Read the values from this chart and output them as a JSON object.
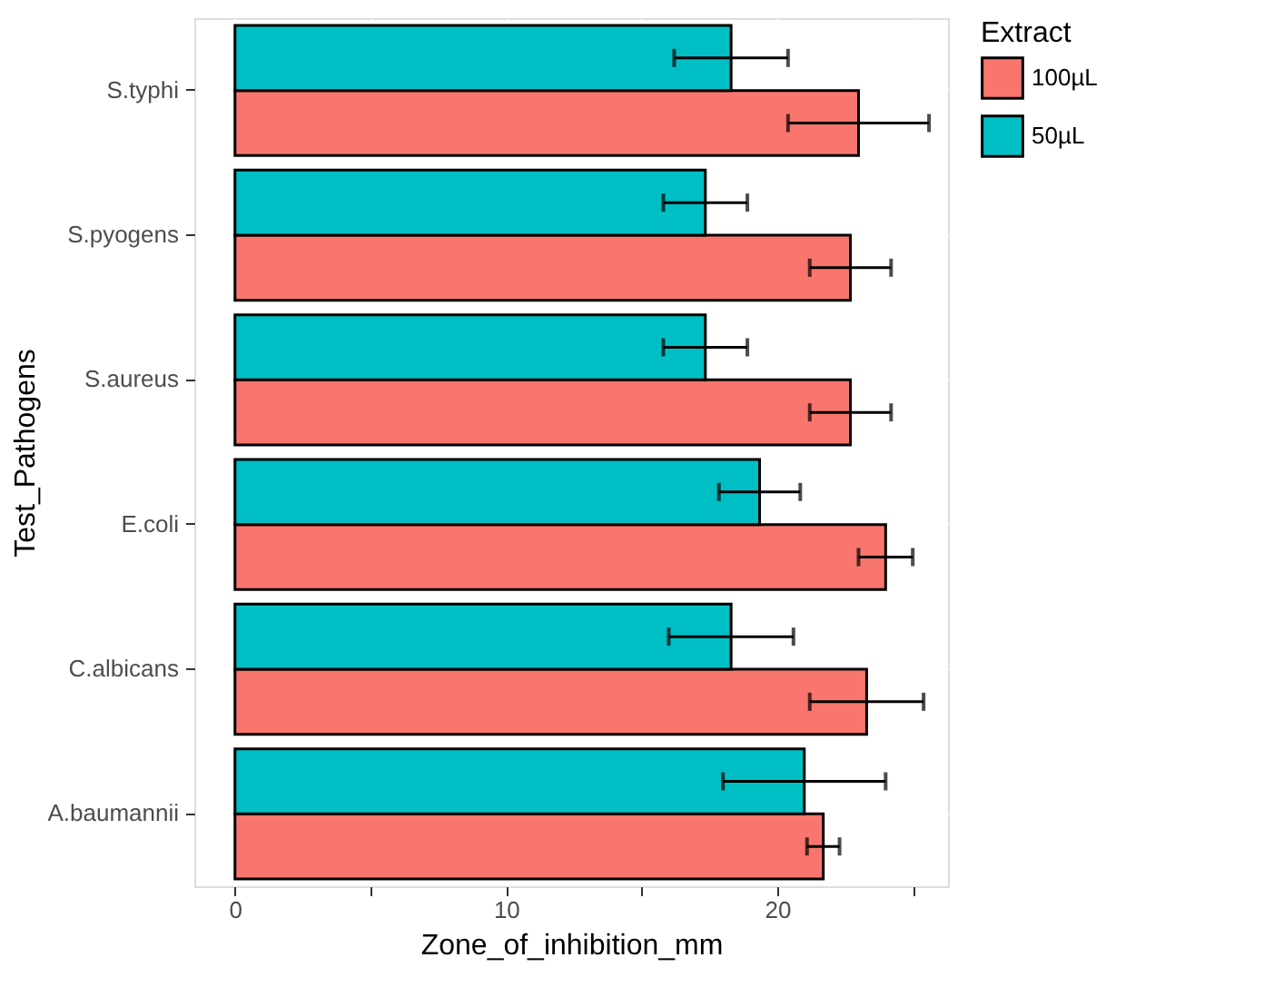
{
  "chart_data": {
    "type": "bar",
    "orientation": "horizontal",
    "categories": [
      "S.typhi",
      "S.pyogens",
      "S.aureus",
      "E.coli",
      "C.albicans",
      "A.baumannii"
    ],
    "series": [
      {
        "name": "100µL",
        "color": "#f8766d",
        "values": [
          23.0,
          22.7,
          22.7,
          24.0,
          23.3,
          21.7
        ],
        "errors": [
          2.6,
          1.5,
          1.5,
          1.0,
          2.1,
          0.6
        ]
      },
      {
        "name": "50µL",
        "color": "#00bfc4",
        "values": [
          18.3,
          17.35,
          17.35,
          19.35,
          18.3,
          21.0
        ],
        "errors": [
          2.1,
          1.55,
          1.55,
          1.5,
          2.3,
          3.0
        ]
      }
    ],
    "xlabel": "Zone_of_inhibition_mm",
    "ylabel": "Test_Pathogens",
    "legend_title": "Extract",
    "xlim": [
      -1.5,
      26.3
    ],
    "xticks": [
      0,
      {
        "value": 5,
        "label": null
      },
      10,
      {
        "value": 15,
        "label": null
      },
      20,
      {
        "value": 25,
        "label": null
      }
    ],
    "grid": true,
    "legend": "right"
  }
}
